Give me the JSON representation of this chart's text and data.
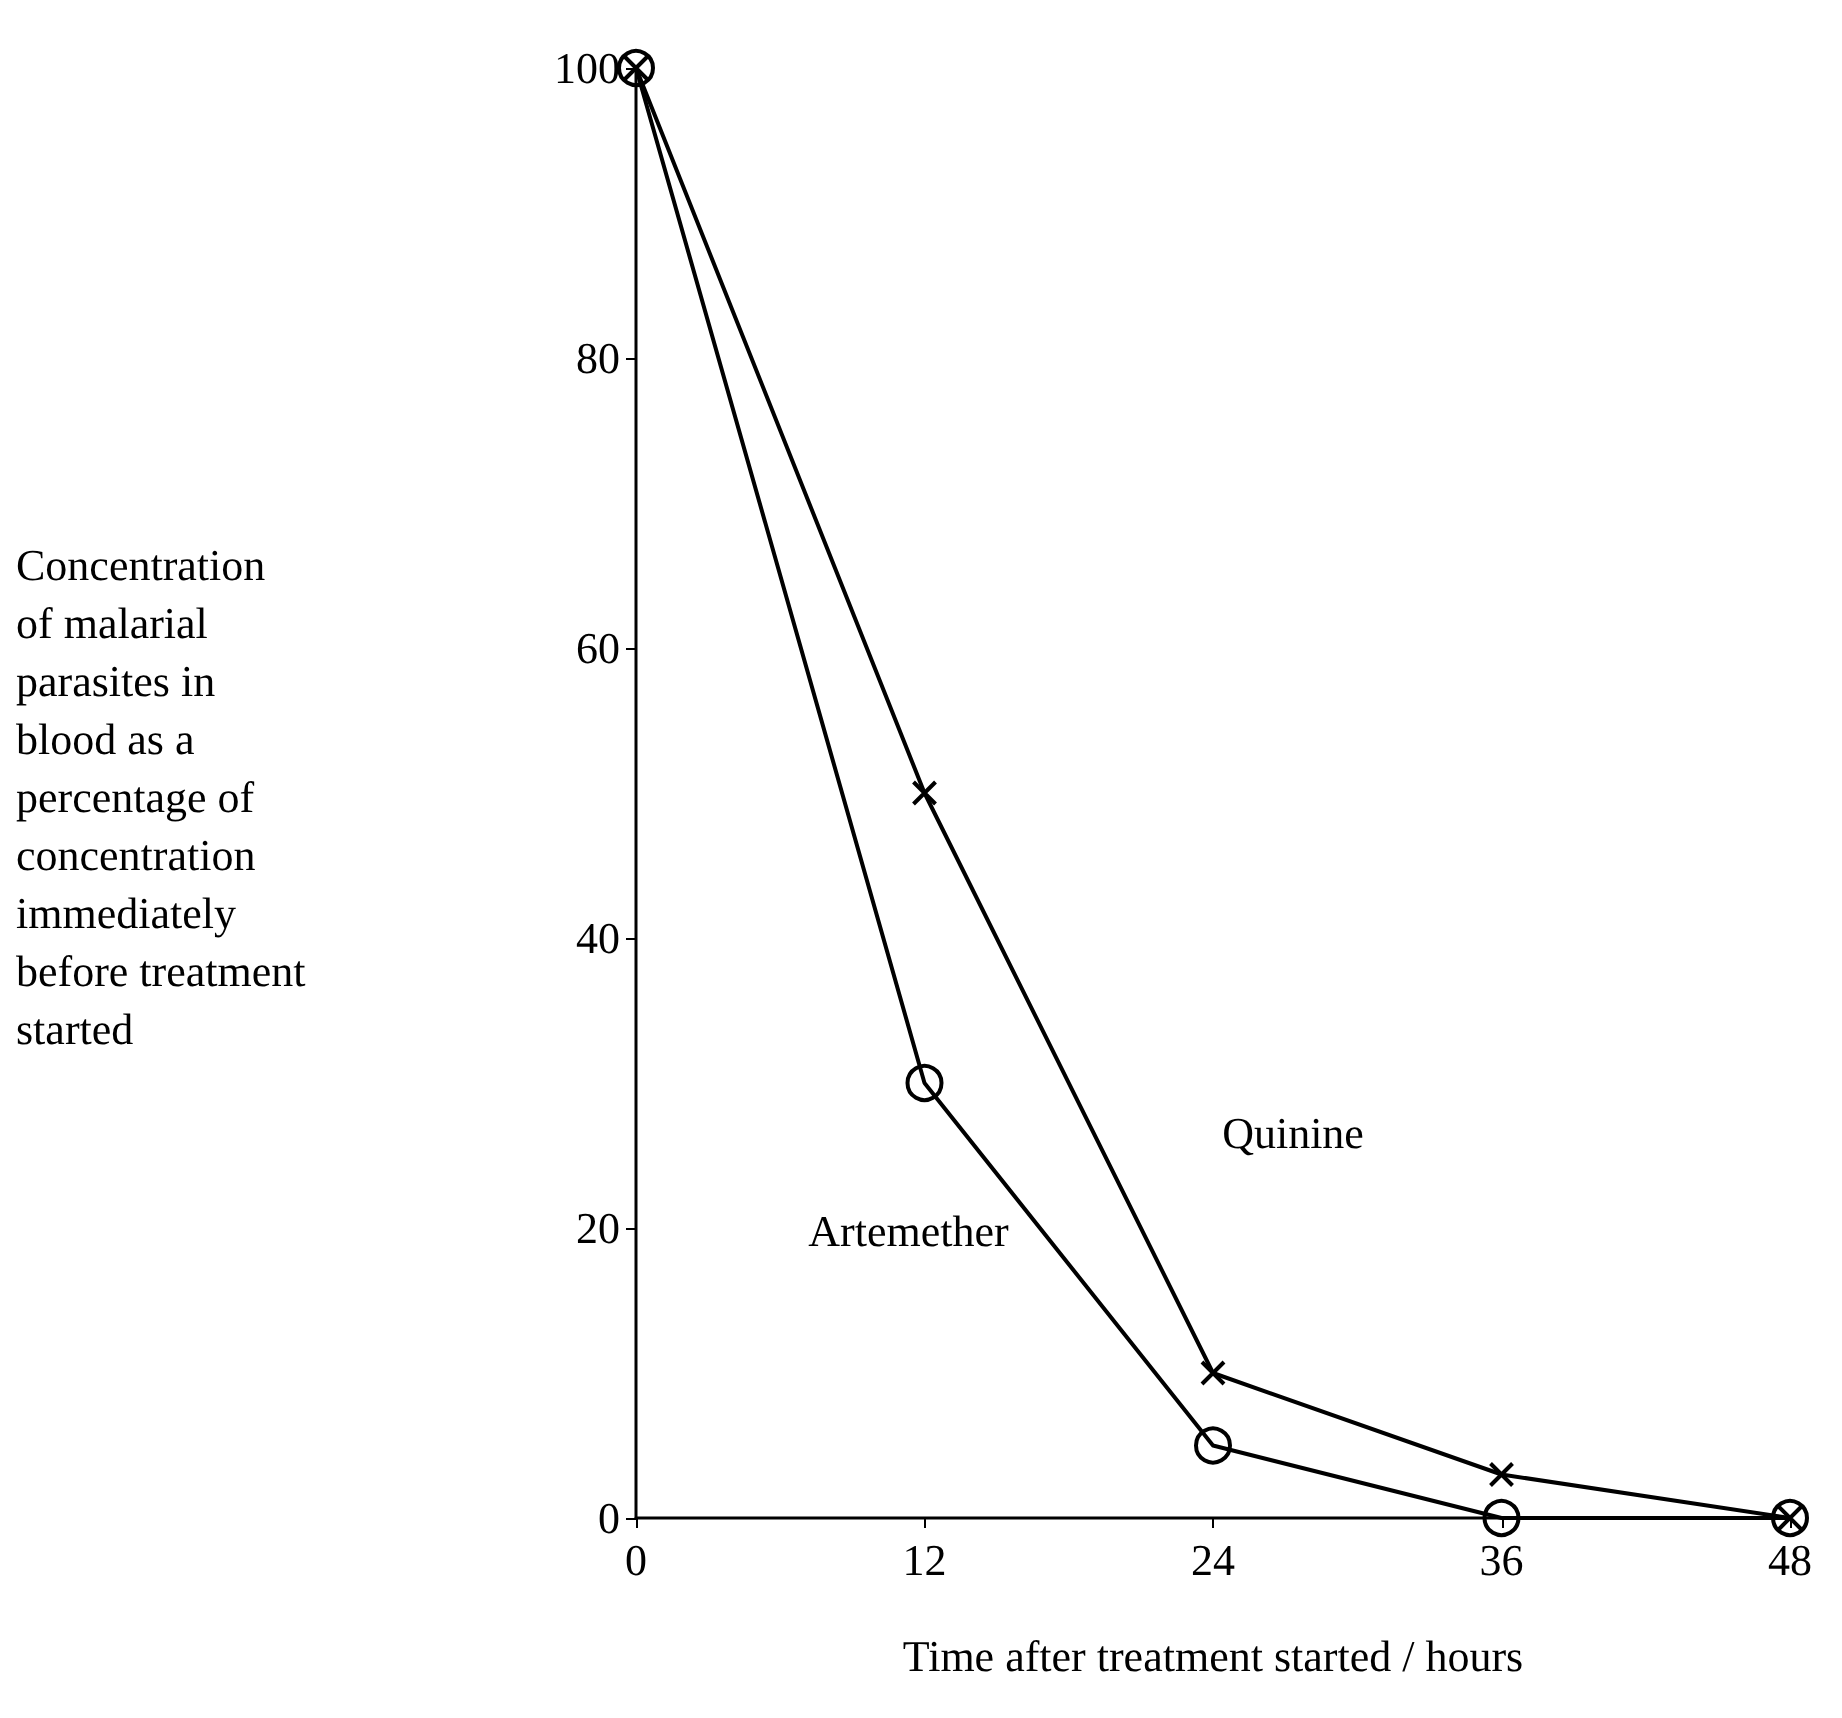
{
  "chart_data": {
    "type": "line",
    "xlabel": "Time after treatment started / hours",
    "ylabel": "Concentration\nof malarial\nparasites in\nblood as a\npercentage of\nconcentration\nimmediately\nbefore treatment\nstarted",
    "x": [
      0,
      12,
      24,
      36,
      48
    ],
    "series": [
      {
        "name": "Quinine",
        "color": "#000000",
        "marker": "cross",
        "values": [
          100,
          50,
          10,
          3,
          0
        ]
      },
      {
        "name": "Artemether",
        "color": "#000000",
        "marker": "circle",
        "values": [
          100,
          30,
          5,
          0,
          0
        ]
      }
    ],
    "xlim": [
      0,
      48
    ],
    "xticks": [
      0,
      12,
      24,
      36,
      48
    ],
    "ylim": [
      0,
      100
    ],
    "yticks": [
      0,
      20,
      40,
      60,
      80,
      100
    ],
    "grid": false,
    "legend": false,
    "line_style": "solid"
  }
}
